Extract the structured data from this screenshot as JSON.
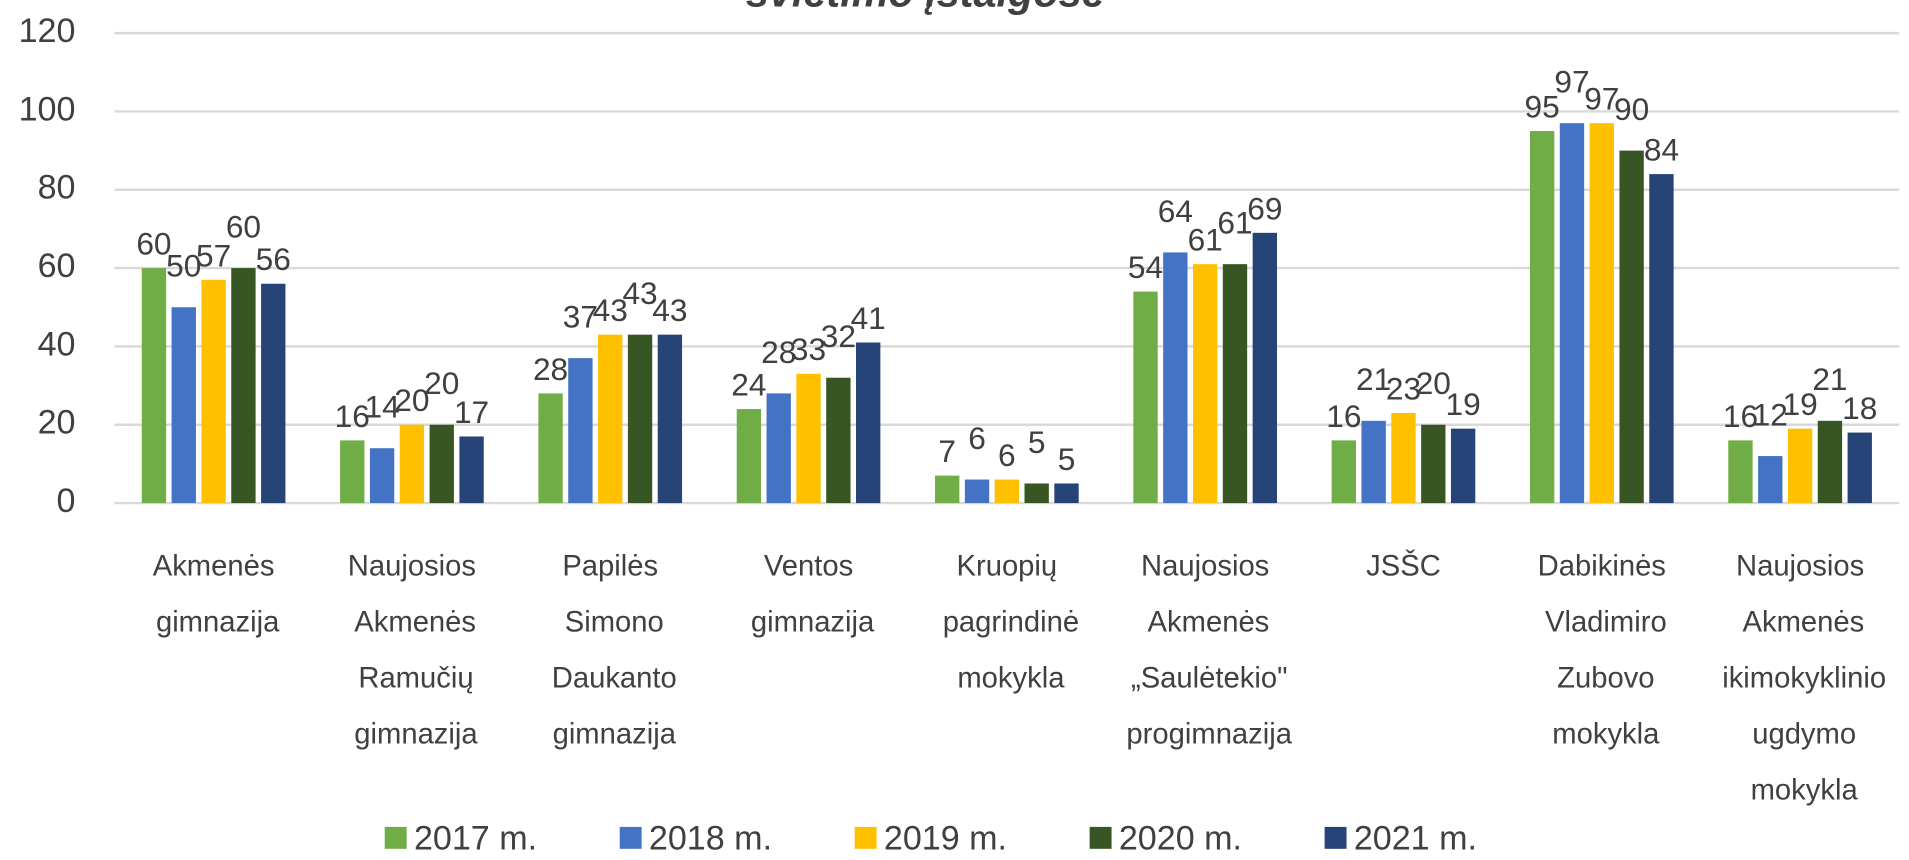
{
  "chart_data": {
    "type": "bar",
    "title": "švietimo įstaigose",
    "categories": [
      "Akmenės gimnazija",
      "Naujosios Akmenės Ramučių gimnazija",
      "Papilės Simono Daukanto gimnazija",
      "Ventos gimnazija",
      "Kruopių pagrindinė mokykla",
      "Naujosios Akmenės „Saulėtekio\" progimnazija",
      "JSŠC",
      "Dabikinės Vladimiro Zubovo mokykla",
      "Naujosios Akmenės ikimokyklinio ugdymo mokykla"
    ],
    "series": [
      {
        "name": "2017 m.",
        "color": "#70ad47",
        "values": [
          60,
          16,
          28,
          24,
          7,
          54,
          16,
          95,
          16
        ]
      },
      {
        "name": "2018 m.",
        "color": "#4472c4",
        "values": [
          50,
          14,
          37,
          28,
          6,
          64,
          21,
          97,
          12
        ]
      },
      {
        "name": "2019 m.",
        "color": "#ffc000",
        "values": [
          57,
          20,
          43,
          33,
          6,
          61,
          23,
          97,
          19
        ]
      },
      {
        "name": "2020 m.",
        "color": "#375623",
        "values": [
          60,
          20,
          43,
          32,
          5,
          61,
          20,
          90,
          21
        ]
      },
      {
        "name": "2021 m.",
        "color": "#264478",
        "values": [
          56,
          17,
          43,
          41,
          5,
          69,
          19,
          84,
          18
        ]
      }
    ],
    "ylim": [
      0,
      120
    ],
    "yticks": [
      0,
      20,
      40,
      60,
      80,
      100,
      120
    ],
    "grid": true,
    "legend": "bottom"
  }
}
